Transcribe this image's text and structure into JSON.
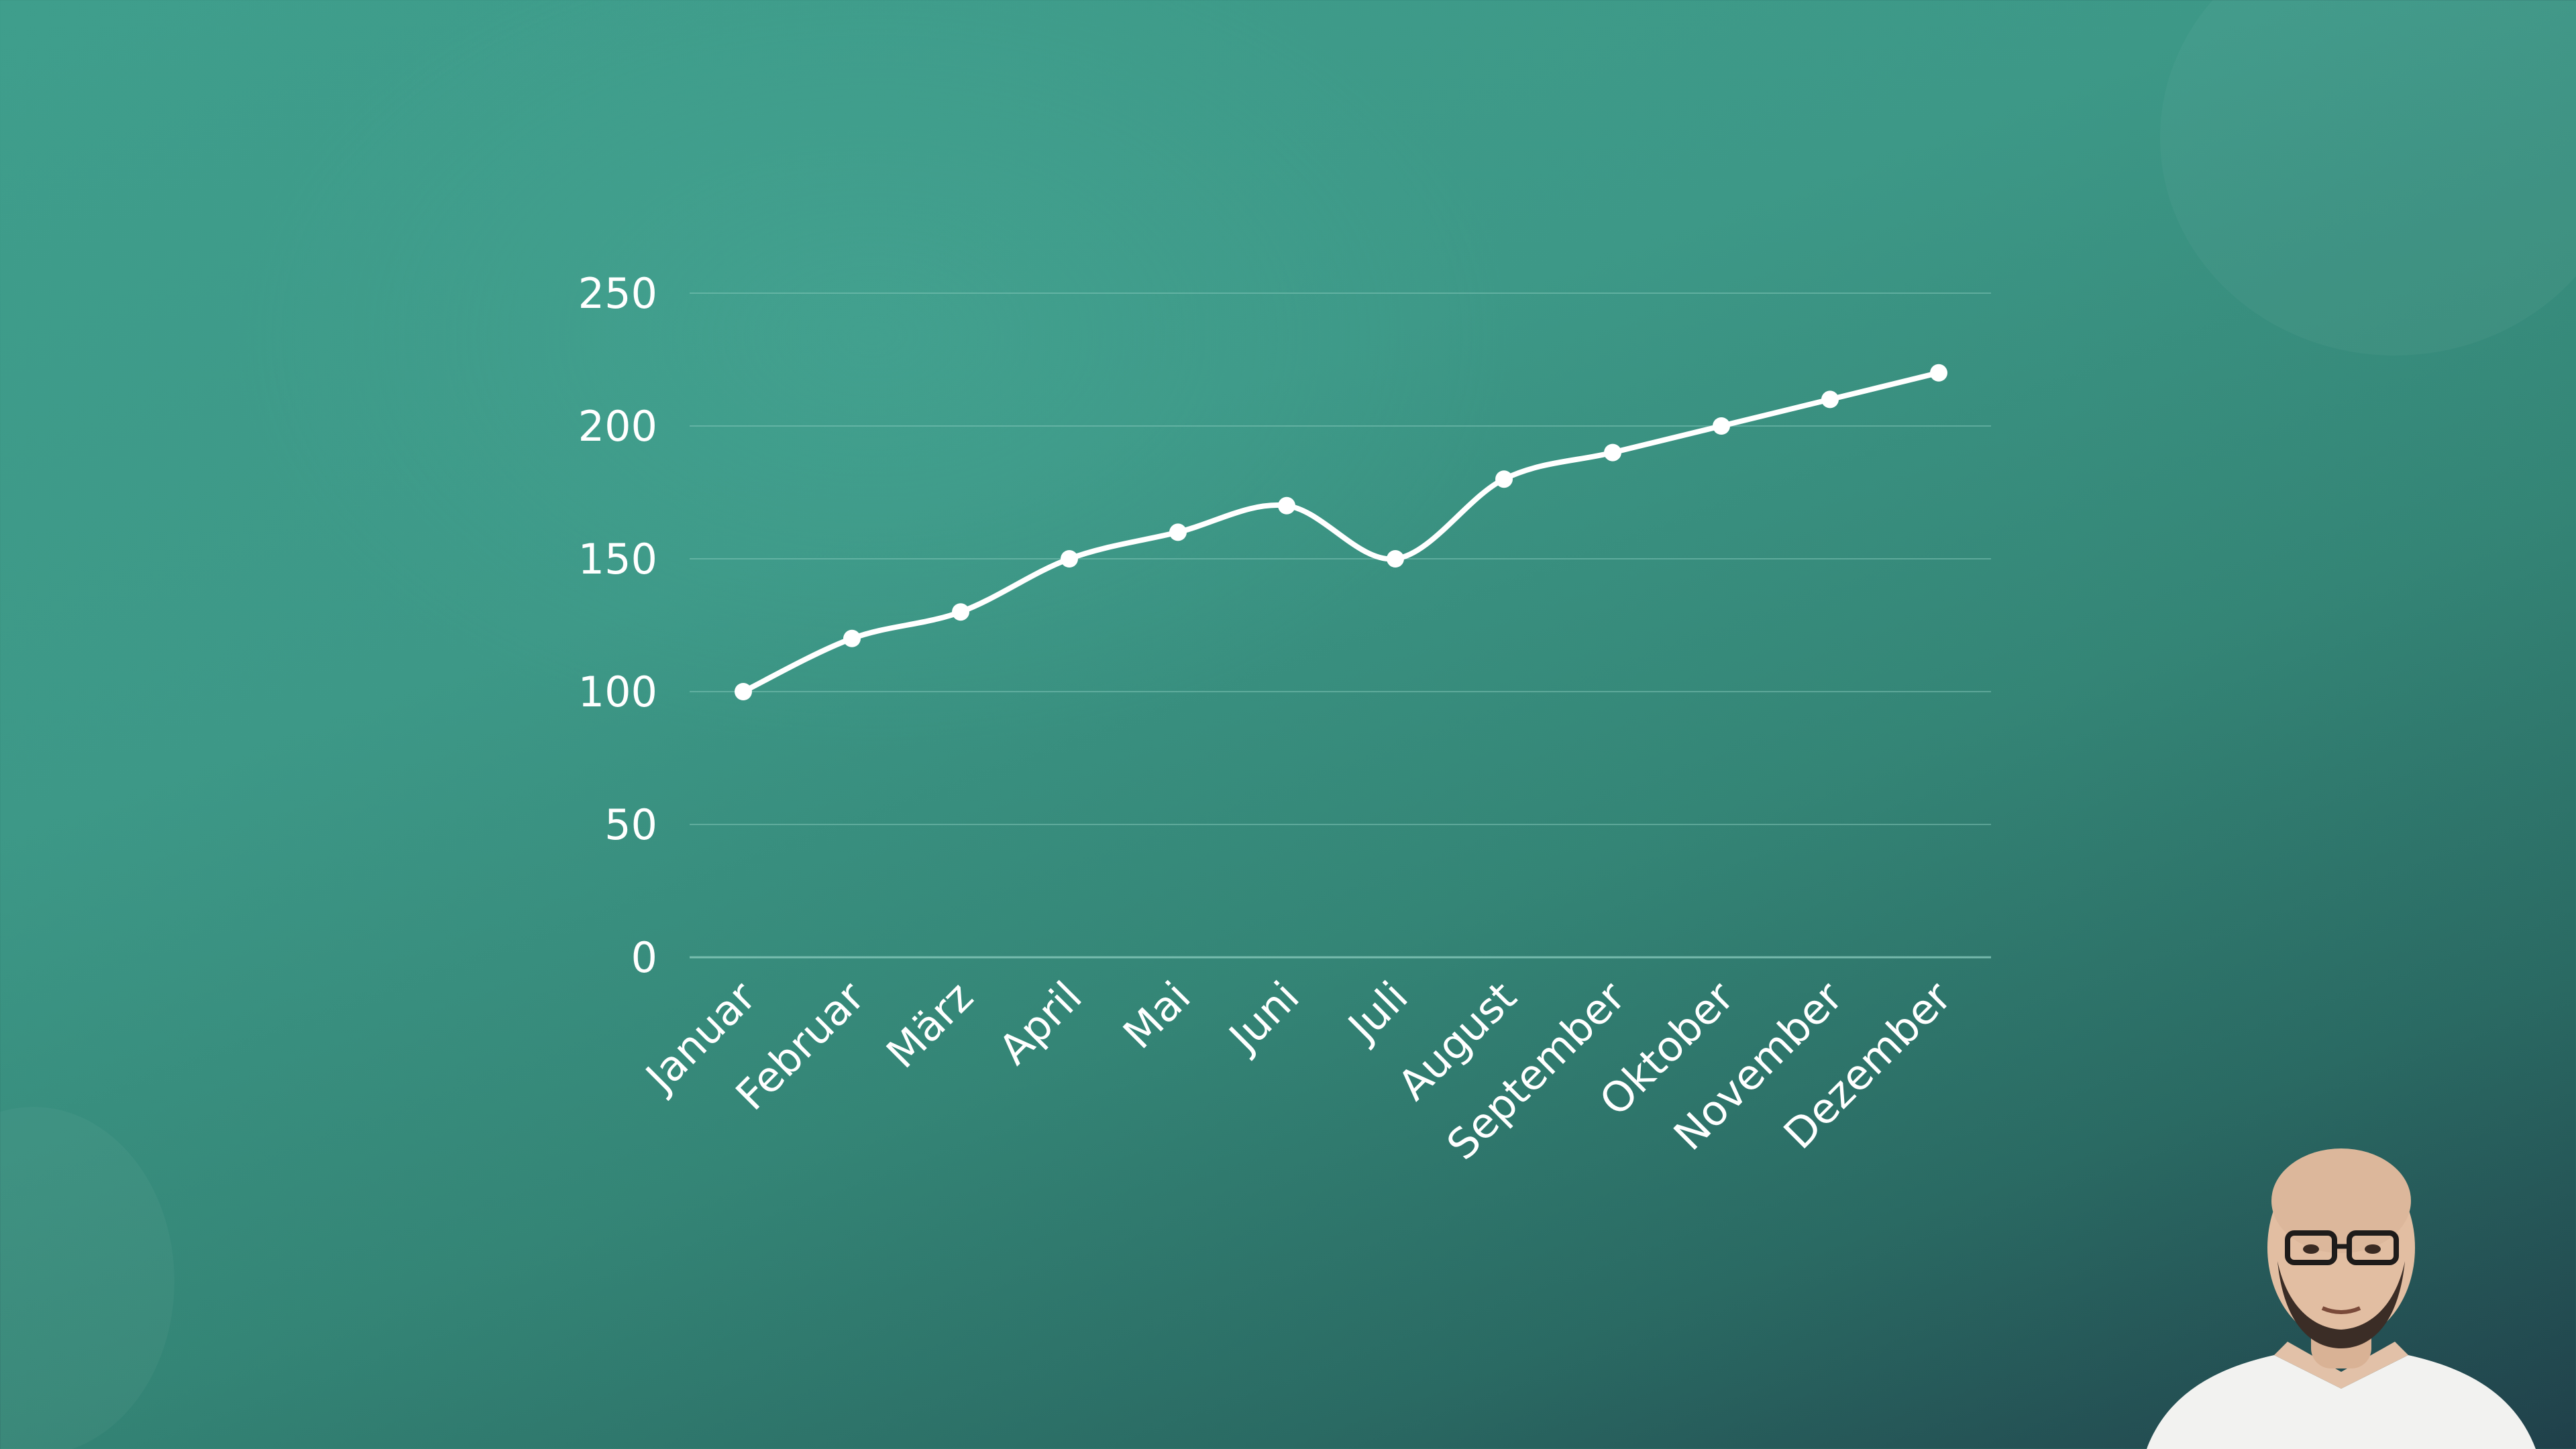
{
  "colors": {
    "background": "#3d9887",
    "line": "#ffffff",
    "gridline": "#8fcfc1",
    "text": "#ffffff"
  },
  "chart_data": {
    "type": "line",
    "title": "",
    "xlabel": "",
    "ylabel": "",
    "categories": [
      "Januar",
      "Februar",
      "März",
      "April",
      "Mai",
      "Juni",
      "Juli",
      "August",
      "September",
      "Oktober",
      "November",
      "Dezember"
    ],
    "series": [
      {
        "values": [
          100,
          120,
          130,
          150,
          160,
          170,
          150,
          180,
          190,
          200,
          210,
          220
        ]
      }
    ],
    "ylim": [
      0,
      250
    ],
    "yticks": [
      0,
      50,
      100,
      150,
      200,
      250
    ],
    "grid": true,
    "legend": "none",
    "smooth": true,
    "markers": true
  },
  "presenter": {
    "icon": "presenter-webcam"
  }
}
